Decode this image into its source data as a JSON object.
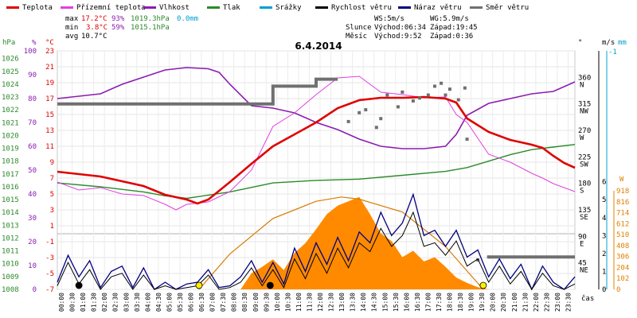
{
  "chart_data": {
    "type": "line",
    "title": "6.4.2014",
    "legend": [
      {
        "key": "teplota",
        "label": "Teplota",
        "color": "#e00000"
      },
      {
        "key": "prizemni",
        "label": "Přízemní teplota",
        "color": "#e040e0"
      },
      {
        "key": "vlhkost",
        "label": "Vlhkost",
        "color": "#8a1cb0"
      },
      {
        "key": "tlak",
        "label": "Tlak",
        "color": "#2a8a2a"
      },
      {
        "key": "srazky",
        "label": "Srážky",
        "color": "#00a0d0"
      },
      {
        "key": "rychlost",
        "label": "Rychlost větru",
        "color": "#000000"
      },
      {
        "key": "naraz",
        "label": "Náraz větru",
        "color": "#000080"
      },
      {
        "key": "smer",
        "label": "Směr větru",
        "color": "#707070"
      }
    ],
    "stats": {
      "max_label": "max",
      "min_label": "min",
      "avg_label": "avg",
      "max_temp": "17.2°C",
      "max_hum": "93%",
      "max_press": "1019.3hPa",
      "max_rain": "0.0mm",
      "min_temp": "3.8°C",
      "min_hum": "59%",
      "min_press": "1015.1hPa",
      "avg_temp": "10.7°C"
    },
    "info": {
      "ws": "WS:5m/s",
      "wg": "WG:5.9m/s",
      "sun_label": "Slunce",
      "sun_rise": "Východ:06:34",
      "sun_set": "Západ:19:45",
      "moon_label": "Měsíc",
      "moon_rise": "Východ:9:52",
      "moon_set": "Západ:0:36"
    },
    "axes": {
      "hpa_title": "hPa",
      "pct_title": "%",
      "c_title": "°C",
      "deg_title": "°",
      "ms_title": "m/s",
      "mm_title": "mm",
      "rad_title": "W",
      "x_title": "čas",
      "hpa_ticks": [
        "1026",
        "1025",
        "1024",
        "1023",
        "1022",
        "1021",
        "1020",
        "1019",
        "1018",
        "1017",
        "1016",
        "1015",
        "1014",
        "1013",
        "1012",
        "1011",
        "1010",
        "1009",
        "1008"
      ],
      "pct_ticks": [
        "100",
        "90",
        "80",
        "70",
        "60",
        "50",
        "40",
        "30",
        "20",
        "10",
        "0"
      ],
      "c_ticks": [
        "23",
        "21",
        "19",
        "17",
        "15",
        "13",
        "11",
        "9",
        "7",
        "5",
        "3",
        "1",
        "-1",
        "-3",
        "-5",
        "-7"
      ],
      "dir_ticks": [
        {
          "deg": "360",
          "name": "N"
        },
        {
          "deg": "315",
          "name": "NW"
        },
        {
          "deg": "270",
          "name": "W"
        },
        {
          "deg": "225",
          "name": "SW"
        },
        {
          "deg": "180",
          "name": "S"
        },
        {
          "deg": "135",
          "name": "SE"
        },
        {
          "deg": "90",
          "name": "E"
        },
        {
          "deg": "45",
          "name": "NE"
        }
      ],
      "ms_ticks": [
        "6",
        "5",
        "4",
        "3",
        "2",
        "1",
        "0"
      ],
      "mm_ticks": [
        "-1"
      ],
      "rad_ticks": [
        "918",
        "816",
        "714",
        "612",
        "510",
        "408",
        "306",
        "204",
        "102",
        "0"
      ],
      "time_labels": [
        "00:00",
        "00:30",
        "01:00",
        "01:30",
        "02:00",
        "02:30",
        "03:00",
        "03:30",
        "04:00",
        "04:30",
        "05:00",
        "05:30",
        "06:00",
        "06:30",
        "07:00",
        "07:30",
        "08:00",
        "08:30",
        "09:00",
        "09:30",
        "10:00",
        "10:30",
        "11:00",
        "11:30",
        "12:00",
        "12:30",
        "13:00",
        "13:30",
        "14:00",
        "14:30",
        "15:00",
        "15:30",
        "16:00",
        "16:30",
        "17:00",
        "17:30",
        "18:00",
        "18:30",
        "19:00",
        "19:30",
        "20:00",
        "20:30",
        "21:00",
        "21:30",
        "22:00",
        "22:30",
        "23:00",
        "23:30"
      ]
    },
    "series": {
      "teplota_c": [
        [
          0,
          7.8
        ],
        [
          1,
          7.5
        ],
        [
          2,
          7.2
        ],
        [
          3,
          6.6
        ],
        [
          4,
          6.0
        ],
        [
          5,
          4.9
        ],
        [
          6,
          4.3
        ],
        [
          6.5,
          3.8
        ],
        [
          7,
          4.3
        ],
        [
          8,
          6.5
        ],
        [
          9,
          8.8
        ],
        [
          10,
          11.0
        ],
        [
          11,
          12.5
        ],
        [
          12,
          14.0
        ],
        [
          13,
          15.8
        ],
        [
          14,
          16.8
        ],
        [
          15,
          17.1
        ],
        [
          16,
          17.1
        ],
        [
          17,
          17.2
        ],
        [
          18,
          17.0
        ],
        [
          18.5,
          16.5
        ],
        [
          19,
          14.5
        ],
        [
          20,
          12.8
        ],
        [
          21,
          11.8
        ],
        [
          22,
          11.2
        ],
        [
          22.5,
          10.8
        ],
        [
          23,
          9.8
        ],
        [
          23.5,
          8.9
        ],
        [
          24,
          8.3
        ]
      ],
      "prizemni_c": [
        [
          0,
          6.5
        ],
        [
          1,
          5.5
        ],
        [
          2,
          5.8
        ],
        [
          3,
          5.0
        ],
        [
          4,
          4.8
        ],
        [
          5,
          3.7
        ],
        [
          5.5,
          3.0
        ],
        [
          6,
          3.7
        ],
        [
          7,
          4.0
        ],
        [
          8,
          5.3
        ],
        [
          9,
          8.0
        ],
        [
          10,
          13.5
        ],
        [
          11,
          15.2
        ],
        [
          12,
          17.5
        ],
        [
          13,
          19.6
        ],
        [
          14,
          19.8
        ],
        [
          15,
          17.8
        ],
        [
          16,
          17.5
        ],
        [
          17,
          17.1
        ],
        [
          18,
          17.2
        ],
        [
          18.5,
          15.0
        ],
        [
          19,
          14.0
        ],
        [
          20,
          10.0
        ],
        [
          21,
          9.0
        ],
        [
          22,
          7.6
        ],
        [
          22.5,
          7.0
        ],
        [
          23,
          6.3
        ],
        [
          24,
          5.3
        ]
      ],
      "vlhkost_pct": [
        [
          0,
          80
        ],
        [
          2,
          82
        ],
        [
          3,
          86
        ],
        [
          4,
          89
        ],
        [
          5,
          92
        ],
        [
          6,
          93
        ],
        [
          7,
          92.5
        ],
        [
          7.5,
          91
        ],
        [
          8,
          86
        ],
        [
          9,
          77
        ],
        [
          10,
          76
        ],
        [
          11,
          74
        ],
        [
          12,
          70
        ],
        [
          13,
          67
        ],
        [
          14,
          63
        ],
        [
          15,
          60
        ],
        [
          16,
          59
        ],
        [
          17,
          59
        ],
        [
          18,
          60
        ],
        [
          18.5,
          65
        ],
        [
          19,
          73
        ],
        [
          20,
          78
        ],
        [
          21,
          80
        ],
        [
          22,
          82
        ],
        [
          23,
          83
        ],
        [
          24,
          87
        ]
      ],
      "tlak_hpa": [
        [
          0,
          1016.3
        ],
        [
          2,
          1016.0
        ],
        [
          4,
          1015.6
        ],
        [
          5,
          1015.3
        ],
        [
          6,
          1015.1
        ],
        [
          8,
          1015.6
        ],
        [
          10,
          1016.3
        ],
        [
          12,
          1016.5
        ],
        [
          14,
          1016.6
        ],
        [
          16,
          1016.9
        ],
        [
          18,
          1017.2
        ],
        [
          19,
          1017.5
        ],
        [
          20,
          1018.0
        ],
        [
          21,
          1018.5
        ],
        [
          22,
          1018.9
        ],
        [
          23,
          1019.1
        ],
        [
          24,
          1019.3
        ]
      ],
      "naraz_ms": [
        [
          0,
          0.4
        ],
        [
          0.5,
          1.9
        ],
        [
          1,
          0.7
        ],
        [
          1.5,
          1.6
        ],
        [
          2,
          0.1
        ],
        [
          2.5,
          1.0
        ],
        [
          3,
          1.3
        ],
        [
          3.5,
          0.1
        ],
        [
          4,
          1.2
        ],
        [
          4.5,
          0.0
        ],
        [
          5,
          0.4
        ],
        [
          5.5,
          0.0
        ],
        [
          6,
          0.3
        ],
        [
          6.5,
          0.4
        ],
        [
          7,
          1.1
        ],
        [
          7.5,
          0.1
        ],
        [
          8,
          0.2
        ],
        [
          8.5,
          0.7
        ],
        [
          9,
          1.6
        ],
        [
          9.5,
          0.4
        ],
        [
          10,
          1.5
        ],
        [
          10.5,
          0.3
        ],
        [
          11,
          2.3
        ],
        [
          11.5,
          1.0
        ],
        [
          12,
          2.6
        ],
        [
          12.5,
          1.4
        ],
        [
          13,
          2.9
        ],
        [
          13.5,
          1.6
        ],
        [
          14,
          3.2
        ],
        [
          14.5,
          2.6
        ],
        [
          15,
          4.3
        ],
        [
          15.5,
          3.0
        ],
        [
          16,
          3.7
        ],
        [
          16.5,
          5.3
        ],
        [
          17,
          3.0
        ],
        [
          17.5,
          3.3
        ],
        [
          18,
          2.4
        ],
        [
          18.5,
          3.3
        ],
        [
          19,
          1.8
        ],
        [
          19.5,
          2.2
        ],
        [
          20,
          0.7
        ],
        [
          20.5,
          1.7
        ],
        [
          21,
          0.6
        ],
        [
          21.5,
          1.4
        ],
        [
          22,
          0.0
        ],
        [
          22.5,
          1.3
        ],
        [
          23,
          0.4
        ],
        [
          23.5,
          0.0
        ],
        [
          24,
          0.7
        ]
      ],
      "rychlost_ms": [
        [
          0,
          0.2
        ],
        [
          0.5,
          1.5
        ],
        [
          1,
          0.3
        ],
        [
          1.5,
          1.1
        ],
        [
          2,
          0.0
        ],
        [
          2.5,
          0.7
        ],
        [
          3,
          0.9
        ],
        [
          3.5,
          0.0
        ],
        [
          4,
          0.8
        ],
        [
          4.5,
          0.0
        ],
        [
          5,
          0.2
        ],
        [
          5.5,
          0.0
        ],
        [
          6,
          0.1
        ],
        [
          6.5,
          0.2
        ],
        [
          7,
          0.8
        ],
        [
          7.5,
          0.0
        ],
        [
          8,
          0.1
        ],
        [
          8.5,
          0.4
        ],
        [
          9,
          1.2
        ],
        [
          9.5,
          0.2
        ],
        [
          10,
          1.1
        ],
        [
          10.5,
          0.1
        ],
        [
          11,
          1.7
        ],
        [
          11.5,
          0.6
        ],
        [
          12,
          2.0
        ],
        [
          12.5,
          0.9
        ],
        [
          13,
          2.3
        ],
        [
          13.5,
          1.2
        ],
        [
          14,
          2.6
        ],
        [
          14.5,
          2.1
        ],
        [
          15,
          3.4
        ],
        [
          15.5,
          2.4
        ],
        [
          16,
          3.0
        ],
        [
          16.5,
          4.3
        ],
        [
          17,
          2.4
        ],
        [
          17.5,
          2.6
        ],
        [
          18,
          1.9
        ],
        [
          18.5,
          2.7
        ],
        [
          19,
          1.3
        ],
        [
          19.5,
          1.7
        ],
        [
          20,
          0.4
        ],
        [
          20.5,
          1.3
        ],
        [
          21,
          0.3
        ],
        [
          21.5,
          1.0
        ],
        [
          22,
          0.0
        ],
        [
          22.5,
          0.9
        ],
        [
          23,
          0.2
        ],
        [
          23.5,
          0.0
        ],
        [
          24,
          0.3
        ]
      ],
      "radiace_w": [
        [
          7.2,
          0
        ],
        [
          8.5,
          0
        ],
        [
          9,
          150
        ],
        [
          9.5,
          210
        ],
        [
          10,
          280
        ],
        [
          10.5,
          180
        ],
        [
          11,
          340
        ],
        [
          11.5,
          430
        ],
        [
          12,
          560
        ],
        [
          12.5,
          700
        ],
        [
          13,
          780
        ],
        [
          13.5,
          820
        ],
        [
          14,
          860
        ],
        [
          14.5,
          700
        ],
        [
          15,
          520
        ],
        [
          15.5,
          450
        ],
        [
          16,
          300
        ],
        [
          16.5,
          360
        ],
        [
          17,
          260
        ],
        [
          17.5,
          300
        ],
        [
          18,
          210
        ],
        [
          18.5,
          110
        ],
        [
          19,
          60
        ],
        [
          19.5,
          20
        ],
        [
          20,
          0
        ]
      ],
      "teoreticka_w": [
        [
          6.57,
          0
        ],
        [
          8,
          330
        ],
        [
          10,
          660
        ],
        [
          12,
          820
        ],
        [
          13.17,
          860
        ],
        [
          14,
          840
        ],
        [
          16,
          720
        ],
        [
          18,
          400
        ],
        [
          19.75,
          0
        ]
      ],
      "smer_deg": [
        [
          0,
          315
        ],
        [
          10,
          315
        ],
        [
          10,
          345
        ],
        [
          12,
          345
        ],
        [
          12,
          357
        ],
        [
          13,
          357
        ]
      ],
      "smer_scatter_deg": [
        [
          13.5,
          285
        ],
        [
          14.0,
          300
        ],
        [
          14.3,
          305
        ],
        [
          14.8,
          275
        ],
        [
          15.0,
          290
        ],
        [
          15.3,
          330
        ],
        [
          15.8,
          310
        ],
        [
          16.0,
          335
        ],
        [
          16.5,
          320
        ],
        [
          16.8,
          325
        ],
        [
          17.2,
          330
        ],
        [
          17.5,
          345
        ],
        [
          17.8,
          350
        ],
        [
          18.0,
          330
        ],
        [
          18.2,
          340
        ],
        [
          18.6,
          322
        ],
        [
          18.9,
          342
        ],
        [
          19.0,
          255
        ],
        [
          19.5,
          50
        ],
        [
          20.0,
          55
        ]
      ],
      "smer_late_deg": [
        [
          20,
          55
        ],
        [
          24,
          55
        ]
      ]
    },
    "markers": [
      {
        "t": 1,
        "kind": "moonset"
      },
      {
        "t": 6.57,
        "kind": "sunrise"
      },
      {
        "t": 9.87,
        "kind": "moonrise"
      },
      {
        "t": 19.75,
        "kind": "sunset"
      }
    ]
  }
}
